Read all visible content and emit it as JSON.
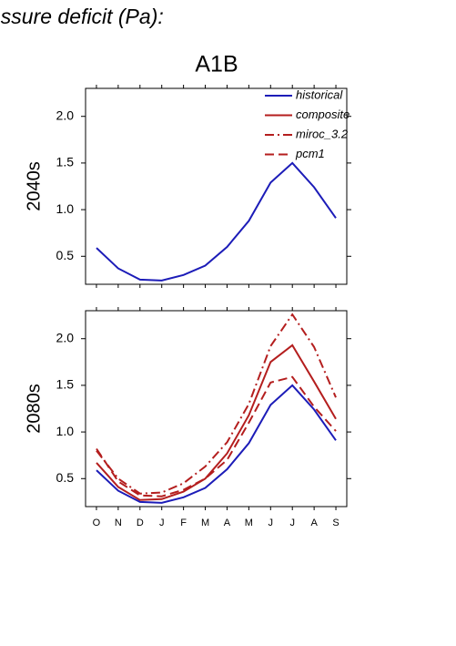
{
  "header": {
    "title": "essure deficit (Pa):",
    "scenario": "A1B"
  },
  "chart_data": [
    {
      "type": "line",
      "ylabel": "2040s",
      "series": [
        {
          "name": "historical",
          "color": "#1c1cb8",
          "linestyle": "solid",
          "values": [
            0.59,
            0.37,
            0.25,
            0.24,
            0.3,
            0.4,
            0.6,
            0.88,
            1.29,
            1.5,
            1.24,
            0.91
          ]
        }
      ],
      "ylim": [
        0.2,
        2.3
      ],
      "yticks": [
        0.5,
        {
          "value": 1,
          "label": "1.0"
        },
        1.5,
        {
          "value": 2,
          "label": "2.0"
        }
      ]
    },
    {
      "type": "line",
      "ylabel": "2080s",
      "categories": [
        "O",
        "N",
        "D",
        "J",
        "F",
        "M",
        "A",
        "M",
        "J",
        "J",
        "A",
        "S"
      ],
      "series": [
        {
          "name": "historical",
          "color": "#1c1cb8",
          "linestyle": "solid",
          "values": [
            0.59,
            0.37,
            0.25,
            0.24,
            0.3,
            0.4,
            0.6,
            0.88,
            1.29,
            1.5,
            1.24,
            0.91
          ]
        },
        {
          "name": "composite",
          "color": "#b41e1e",
          "linestyle": "solid",
          "values": [
            0.67,
            0.41,
            0.27,
            0.28,
            0.36,
            0.5,
            0.77,
            1.18,
            1.75,
            1.93,
            1.54,
            1.14
          ]
        },
        {
          "name": "miroc_3.2",
          "color": "#b41e1e",
          "linestyle": "dashdot",
          "values": [
            0.8,
            0.5,
            0.34,
            0.35,
            0.45,
            0.63,
            0.89,
            1.3,
            1.92,
            2.26,
            1.91,
            1.37
          ]
        },
        {
          "name": "pcm1",
          "color": "#b41e1e",
          "linestyle": "dashed",
          "values": [
            0.82,
            0.47,
            0.32,
            0.31,
            0.38,
            0.5,
            0.7,
            1.1,
            1.53,
            1.59,
            1.27,
            1.01
          ]
        }
      ],
      "ylim": [
        0.2,
        2.3
      ],
      "yticks": [
        0.5,
        {
          "value": 1,
          "label": "1.0"
        },
        1.5,
        {
          "value": 2,
          "label": "2.0"
        }
      ]
    }
  ]
}
